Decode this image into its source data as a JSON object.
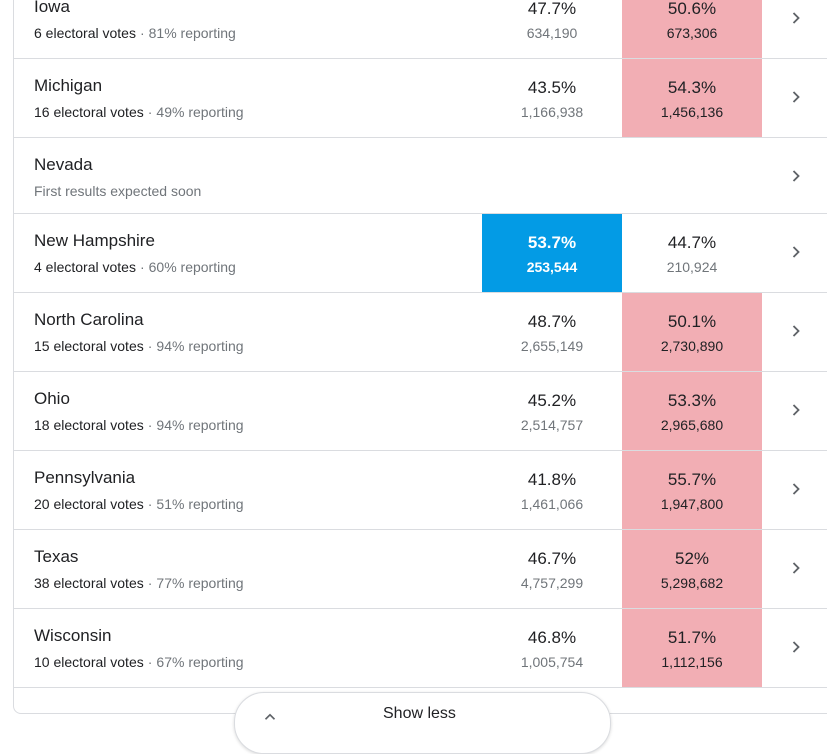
{
  "states": [
    {
      "name": "Iowa",
      "ev": "6 electoral votes",
      "reporting": "81% reporting",
      "dem_pct": "47.7%",
      "dem_votes": "634,190",
      "rep_pct": "50.6%",
      "rep_votes": "673,306",
      "winner": "rep"
    },
    {
      "name": "Michigan",
      "ev": "16 electoral votes",
      "reporting": "49% reporting",
      "dem_pct": "43.5%",
      "dem_votes": "1,166,938",
      "rep_pct": "54.3%",
      "rep_votes": "1,456,136",
      "winner": "rep"
    },
    {
      "name": "Nevada",
      "note": "First results expected soon"
    },
    {
      "name": "New Hampshire",
      "ev": "4 electoral votes",
      "reporting": "60% reporting",
      "dem_pct": "53.7%",
      "dem_votes": "253,544",
      "rep_pct": "44.7%",
      "rep_votes": "210,924",
      "winner": "dem"
    },
    {
      "name": "North Carolina",
      "ev": "15 electoral votes",
      "reporting": "94% reporting",
      "dem_pct": "48.7%",
      "dem_votes": "2,655,149",
      "rep_pct": "50.1%",
      "rep_votes": "2,730,890",
      "winner": "rep"
    },
    {
      "name": "Ohio",
      "ev": "18 electoral votes",
      "reporting": "94% reporting",
      "dem_pct": "45.2%",
      "dem_votes": "2,514,757",
      "rep_pct": "53.3%",
      "rep_votes": "2,965,680",
      "winner": "rep"
    },
    {
      "name": "Pennsylvania",
      "ev": "20 electoral votes",
      "reporting": "51% reporting",
      "dem_pct": "41.8%",
      "dem_votes": "1,461,066",
      "rep_pct": "55.7%",
      "rep_votes": "1,947,800",
      "winner": "rep"
    },
    {
      "name": "Texas",
      "ev": "38 electoral votes",
      "reporting": "77% reporting",
      "dem_pct": "46.7%",
      "dem_votes": "4,757,299",
      "rep_pct": "52%",
      "rep_votes": "5,298,682",
      "winner": "rep"
    },
    {
      "name": "Wisconsin",
      "ev": "10 electoral votes",
      "reporting": "67% reporting",
      "dem_pct": "46.8%",
      "dem_votes": "1,005,754",
      "rep_pct": "51.7%",
      "rep_votes": "1,112,156",
      "winner": "rep"
    }
  ],
  "separator": "·",
  "show_less_label": "Show less",
  "colors": {
    "rep_win": "#f2aeb4",
    "dem_win": "#039be5"
  },
  "icons": {
    "row_action": "chevron-right-icon",
    "collapse": "chevron-up-icon"
  }
}
